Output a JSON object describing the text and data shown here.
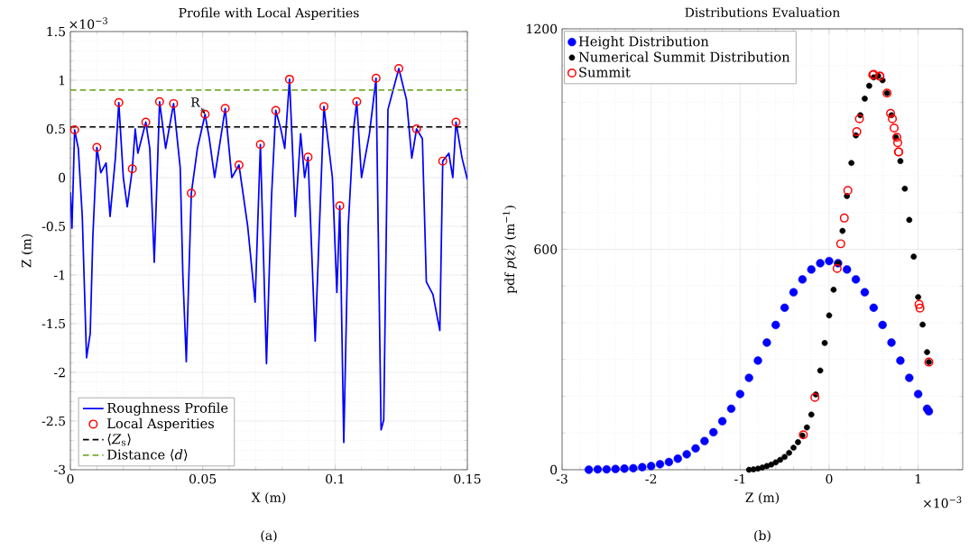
{
  "chart_data": [
    {
      "type": "line",
      "title": "Profile with Local Asperities",
      "xlabel": "X (m)",
      "ylabel": "Z (m)",
      "xlim": [
        0,
        0.15
      ],
      "xticks": [
        0,
        0.05,
        0.1,
        0.15
      ],
      "ylim": [
        -3,
        1.5
      ],
      "yticks": [
        -3,
        -2.5,
        -2,
        -1.5,
        -1,
        -0.5,
        0,
        0.5,
        1,
        1.5
      ],
      "grid": true,
      "legend": "bottom left",
      "series": [
        {
          "name": "Roughness Profile",
          "type": "line",
          "color": "#0000ff",
          "x": [
            0,
            0.0006,
            0.0016,
            0.003,
            0.0045,
            0.0061,
            0.0075,
            0.0085,
            0.01,
            0.0115,
            0.0135,
            0.015,
            0.017,
            0.0183,
            0.02,
            0.0215,
            0.0234,
            0.0245,
            0.0255,
            0.0285,
            0.03,
            0.0317,
            0.0337,
            0.036,
            0.039,
            0.0415,
            0.0425,
            0.0438,
            0.0457,
            0.048,
            0.0509,
            0.0525,
            0.0545,
            0.0585,
            0.061,
            0.0637,
            0.067,
            0.0698,
            0.0718,
            0.0741,
            0.076,
            0.0776,
            0.0795,
            0.081,
            0.0828,
            0.085,
            0.087,
            0.0885,
            0.0898,
            0.0925,
            0.0958,
            0.099,
            0.1007,
            0.1018,
            0.1033,
            0.105,
            0.107,
            0.1082,
            0.11,
            0.113,
            0.1155,
            0.1174,
            0.1184,
            0.12,
            0.1241,
            0.127,
            0.129,
            0.1308,
            0.133,
            0.1345,
            0.137,
            0.1396,
            0.1407,
            0.143,
            0.1445,
            0.1457,
            0.148,
            0.15
          ],
          "values": [
            -0.15,
            -0.52,
            0.49,
            0.3,
            -0.4,
            -1.85,
            -1.6,
            -0.6,
            0.31,
            0.05,
            0.15,
            -0.4,
            0.2,
            0.77,
            0,
            -0.3,
            0.09,
            0.5,
            0.25,
            0.57,
            0.3,
            -0.87,
            0.78,
            0.3,
            0.76,
            0.1,
            -1,
            -1.89,
            -0.16,
            0.3,
            0.65,
            0.4,
            0,
            0.71,
            0,
            0.13,
            -0.5,
            -1.28,
            0.34,
            -1.91,
            -0.2,
            0.69,
            0.5,
            0.3,
            1.01,
            -0.4,
            0.45,
            0,
            0.21,
            -1.68,
            0.73,
            0,
            -1.18,
            -0.29,
            -2.72,
            -0.5,
            0.5,
            0.78,
            0,
            0.45,
            1.02,
            -2.59,
            -2.49,
            0.7,
            1.12,
            0.8,
            0.2,
            0.5,
            0.4,
            -1.07,
            -1.2,
            -1.57,
            0.17,
            0.25,
            0,
            0.57,
            0.2,
            -0.02
          ]
        },
        {
          "name": "Local Asperities",
          "type": "scatter",
          "marker": "circle",
          "color": "#ff0000",
          "x": [
            0.0016,
            0.01,
            0.0183,
            0.0234,
            0.0285,
            0.0337,
            0.039,
            0.0457,
            0.0509,
            0.0585,
            0.0637,
            0.0718,
            0.0776,
            0.0828,
            0.0898,
            0.0958,
            0.1018,
            0.1082,
            0.1155,
            0.1241,
            0.1308,
            0.1407,
            0.1457
          ],
          "values": [
            0.49,
            0.31,
            0.77,
            0.09,
            0.57,
            0.78,
            0.76,
            -0.16,
            0.65,
            0.71,
            0.13,
            0.34,
            0.69,
            1.01,
            0.21,
            0.73,
            -0.29,
            0.78,
            1.02,
            1.12,
            0.5,
            0.17,
            0.57
          ]
        }
      ],
      "ref_lines": [
        {
          "axis": "y",
          "value": 0.52,
          "label": "⟨*Z*$_{s}$⟩",
          "color": "#000000",
          "line_style": "dashed"
        },
        {
          "axis": "y",
          "value": 0.9,
          "label": "Distance ⟨*d*⟩",
          "color": "#77ac30",
          "line_style": "dashed"
        }
      ],
      "annotations": [
        "×10$^{−3}$",
        "(a)",
        {
          "text": "R",
          "x": 0.0509,
          "y": 0.65
        }
      ]
    },
    {
      "type": "scatter",
      "title": "Distributions Evaluation",
      "xlabel": "Z (m)",
      "ylabel": "pdf *p*(*z*) (m$^{−1}$)",
      "xlim": [
        -3,
        1.5
      ],
      "xticks": [
        -3,
        -2,
        -1,
        0,
        1
      ],
      "ylim": [
        0,
        1200
      ],
      "yticks": [
        0,
        600,
        1200
      ],
      "grid": true,
      "legend": "top left",
      "series": [
        {
          "name": "Height Distribution",
          "color": "#0000ff",
          "x": [
            -2.7,
            -2.6,
            -2.5,
            -2.4,
            -2.3,
            -2.2,
            -2.1,
            -2,
            -1.9,
            -1.8,
            -1.7,
            -1.6,
            -1.5,
            -1.4,
            -1.3,
            -1.2,
            -1.1,
            -1,
            -0.9,
            -0.8,
            -0.7,
            -0.6,
            -0.5,
            -0.4,
            -0.3,
            -0.2,
            -0.1,
            0,
            0.1,
            0.2,
            0.3,
            0.4,
            0.5,
            0.6,
            0.7,
            0.8,
            0.9,
            1,
            1.1,
            1.12
          ],
          "values": [
            0,
            1,
            1,
            2,
            3,
            4,
            7,
            10,
            15,
            21,
            30,
            42,
            58,
            78,
            102,
            132,
            166,
            206,
            250,
            297,
            346,
            394,
            441,
            483,
            518,
            545,
            562,
            568,
            562,
            545,
            518,
            483,
            441,
            394,
            346,
            297,
            250,
            206,
            166,
            159
          ]
        },
        {
          "name": "Numerical Summit Distribution",
          "color": "#000000",
          "x": [
            -0.9,
            -0.85,
            -0.8,
            -0.75,
            -0.7,
            -0.65,
            -0.6,
            -0.55,
            -0.5,
            -0.45,
            -0.4,
            -0.35,
            -0.3,
            -0.25,
            -0.2,
            -0.15,
            -0.1,
            -0.05,
            0,
            0.05,
            0.1,
            0.15,
            0.2,
            0.25,
            0.3,
            0.35,
            0.4,
            0.45,
            0.5,
            0.55,
            0.6,
            0.65,
            0.7,
            0.75,
            0.8,
            0.85,
            0.9,
            0.95,
            1,
            1.05,
            1.1,
            1.12
          ],
          "values": [
            0,
            1,
            3,
            6,
            10,
            14,
            20,
            27,
            35,
            46,
            60,
            75,
            93,
            115,
            150,
            205,
            270,
            345,
            420,
            490,
            562,
            650,
            745,
            835,
            910,
            965,
            1010,
            1045,
            1068,
            1072,
            1060,
            1025,
            965,
            905,
            840,
            765,
            680,
            580,
            470,
            395,
            320,
            293
          ]
        },
        {
          "name": "Summit",
          "marker": "circle",
          "color": "#ff0000",
          "x": [
            -0.29,
            -0.16,
            0.09,
            0.13,
            0.17,
            0.21,
            0.31,
            0.34,
            0.49,
            0.5,
            0.57,
            0.57,
            0.65,
            0.69,
            0.71,
            0.73,
            0.76,
            0.77,
            0.78,
            0.78,
            1.01,
            1.02,
            1.12
          ],
          "values": [
            95,
            197,
            548,
            615,
            685,
            760,
            920,
            955,
            1075,
            1076,
            1071,
            1071,
            1025,
            970,
            955,
            930,
            905,
            890,
            865,
            865,
            450,
            440,
            293
          ]
        }
      ],
      "annotations": [
        "×10$^{−3}$",
        "(b)"
      ]
    }
  ]
}
